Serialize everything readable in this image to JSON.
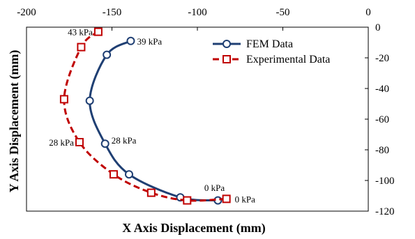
{
  "chart_data": {
    "type": "line",
    "xlabel": "X Axis Displacement (mm)",
    "ylabel": "Y Axis Displacement (mm)",
    "xlim": [
      -200,
      0
    ],
    "ylim": [
      -120,
      0
    ],
    "x_ticks": [
      -200,
      -150,
      -100,
      -50,
      0
    ],
    "y_ticks": [
      0,
      -20,
      -40,
      -60,
      -80,
      -100,
      -120
    ],
    "x_axis_position": "top",
    "y_axis_position": "right",
    "grid": false,
    "legend_position": "top-right",
    "series": [
      {
        "name": "FEM Data",
        "color": "#1f3f73",
        "line_style": "solid",
        "marker": "circle",
        "points": [
          {
            "x": -139,
            "y": -9
          },
          {
            "x": -153,
            "y": -18
          },
          {
            "x": -163,
            "y": -48
          },
          {
            "x": -154,
            "y": -76
          },
          {
            "x": -140,
            "y": -96
          },
          {
            "x": -110,
            "y": -111
          },
          {
            "x": -88,
            "y": -113
          }
        ]
      },
      {
        "name": "Experimental Data",
        "color": "#c00000",
        "line_style": "dashed",
        "marker": "square",
        "points": [
          {
            "x": -158,
            "y": -3
          },
          {
            "x": -168,
            "y": -13
          },
          {
            "x": -178,
            "y": -47
          },
          {
            "x": -169,
            "y": -75
          },
          {
            "x": -149,
            "y": -96
          },
          {
            "x": -127,
            "y": -108
          },
          {
            "x": -106,
            "y": -113
          },
          {
            "x": -83,
            "y": -112
          }
        ]
      }
    ],
    "annotations": [
      {
        "text": "43 kPa",
        "x": -158,
        "y": -3,
        "anchor": "end",
        "dx": -8,
        "dy": 5
      },
      {
        "text": "39 kPa",
        "x": -139,
        "y": -9,
        "anchor": "start",
        "dx": 9,
        "dy": 5
      },
      {
        "text": "28 kPa",
        "x": -169,
        "y": -75,
        "anchor": "end",
        "dx": -8,
        "dy": 5
      },
      {
        "text": "28 kPa",
        "x": -154,
        "y": -76,
        "anchor": "start",
        "dx": 9,
        "dy": 0
      },
      {
        "text": "0 kPa",
        "x": -90,
        "y": -109,
        "anchor": "middle",
        "dx": 0,
        "dy": -5
      },
      {
        "text": "0 kPa",
        "x": -83,
        "y": -112,
        "anchor": "start",
        "dx": 12,
        "dy": 5
      }
    ]
  }
}
